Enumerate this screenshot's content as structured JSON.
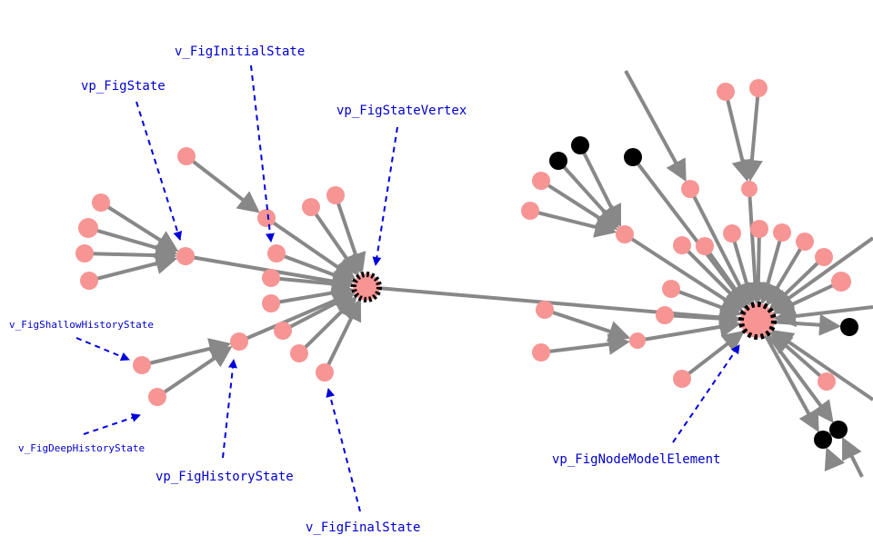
{
  "colors": {
    "edge": "#888888",
    "node_pink": "#f79595",
    "node_black": "#000000",
    "annotation": "#0000cc",
    "hub_center": "#f79595"
  },
  "labels": {
    "fig_initial_state": "v_FigInitialState",
    "fig_state": "vp_FigState",
    "fig_state_vertex": "vp_FigStateVertex",
    "fig_shallow_history_state": "v_FigShallowHistoryState",
    "fig_deep_history_state": "v_FigDeepHistoryState",
    "fig_history_state": "vp_FigHistoryState",
    "fig_final_state": "v_FigFinalState",
    "fig_node_model_element": "vp_FigNodeModelElement"
  }
}
